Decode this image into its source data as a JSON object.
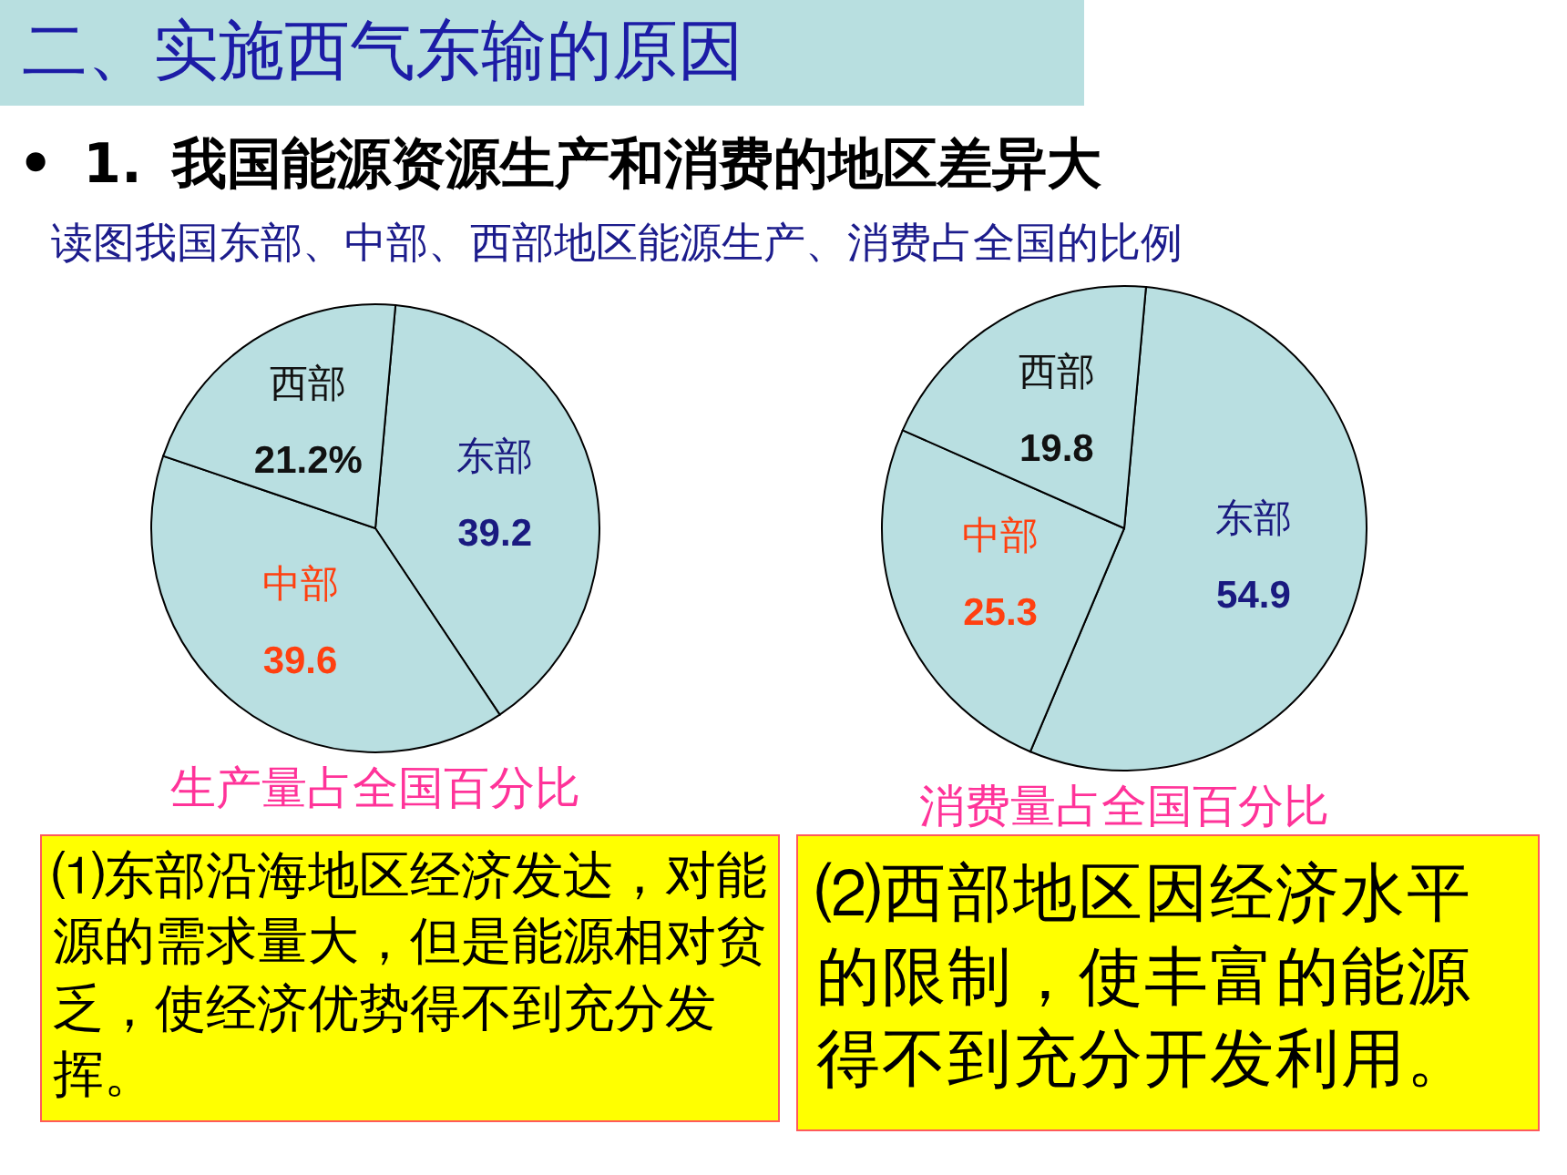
{
  "chart_data": [
    {
      "type": "pie",
      "title": "生产量占全国百分比",
      "categories": [
        "东部",
        "中部",
        "西部"
      ],
      "values": [
        39.2,
        39.6,
        21.2
      ],
      "colors": [
        "#b9dfe1",
        "#b9dfe1",
        "#b9dfe1"
      ],
      "value_labels": [
        "39.2",
        "39.6",
        "21.2%"
      ],
      "annotations": [
        "二、实施西气东输的原因",
        "• 1. 我国能源资源生产和消费的地区差异大",
        "读图我国东部、中部、西部地区能源生产、消费占全国的比例",
        "⑴东部沿海地区经济发达，对能源的需求量大，但是能源相对贫乏，使经济优势得不到充分发挥。"
      ]
    },
    {
      "type": "pie",
      "title": "消费量占全国百分比",
      "categories": [
        "东部",
        "中部",
        "西部"
      ],
      "values": [
        54.9,
        25.3,
        19.8
      ],
      "colors": [
        "#b9dfe1",
        "#b9dfe1",
        "#b9dfe1"
      ],
      "value_labels": [
        "54.9",
        "25.3",
        "19.8"
      ],
      "annotations": [
        "⑵西部地区因经济水平的限制，使丰富的能源得不到充分开发利用。"
      ]
    }
  ]
}
